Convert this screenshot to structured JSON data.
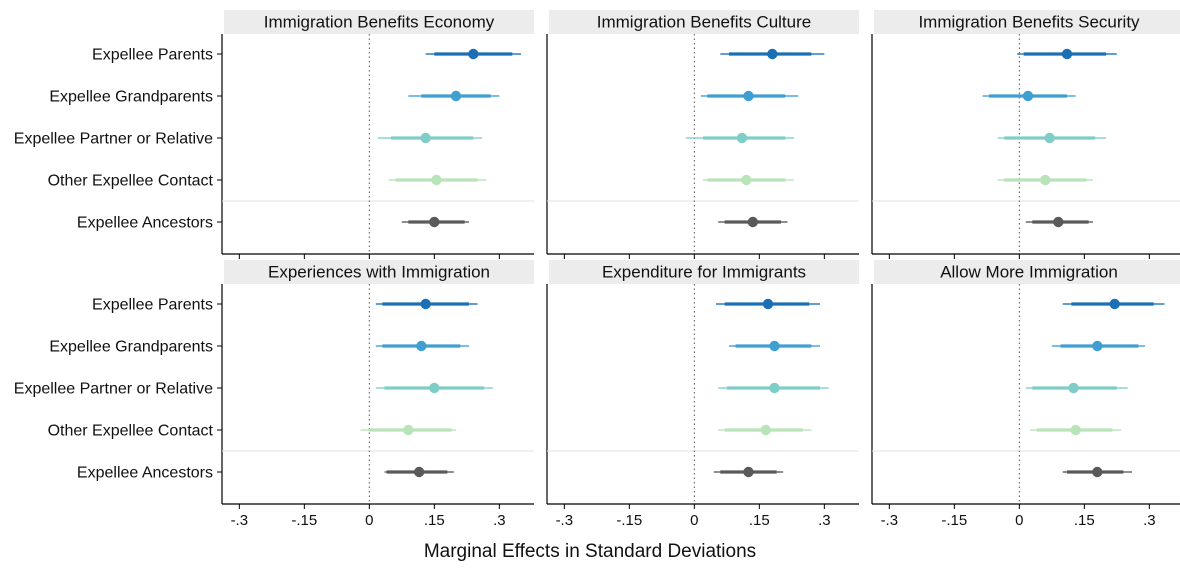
{
  "chart_data": {
    "type": "coefficient-plot",
    "xlabel": "Marginal Effects in Standard Deviations",
    "xlim": [
      -0.34,
      0.38
    ],
    "xticks": [
      -0.3,
      -0.15,
      0,
      0.15,
      0.3
    ],
    "xtick_labels": [
      "-.3",
      "-.15",
      "0",
      ".15",
      ".3"
    ],
    "reference_line": 0,
    "rows": [
      "Expellee Parents",
      "Expellee Grandparents",
      "Expellee Partner or Relative",
      "Other Expellee Contact",
      "Expellee Ancestors"
    ],
    "colors": [
      "#1a6fb5",
      "#3f9fd0",
      "#7fcdc7",
      "#b9e3b9",
      "#5a5a5a"
    ],
    "panels": [
      {
        "title": "Immigration Benefits Economy",
        "estimates": [
          {
            "est": 0.24,
            "ci90": [
              0.15,
              0.33
            ],
            "ci95": [
              0.13,
              0.35
            ]
          },
          {
            "est": 0.2,
            "ci90": [
              0.12,
              0.28
            ],
            "ci95": [
              0.09,
              0.3
            ]
          },
          {
            "est": 0.13,
            "ci90": [
              0.05,
              0.24
            ],
            "ci95": [
              0.02,
              0.26
            ]
          },
          {
            "est": 0.155,
            "ci90": [
              0.06,
              0.25
            ],
            "ci95": [
              0.045,
              0.27
            ]
          },
          {
            "est": 0.15,
            "ci90": [
              0.09,
              0.22
            ],
            "ci95": [
              0.075,
              0.23
            ]
          }
        ]
      },
      {
        "title": "Immigration Benefits Culture",
        "estimates": [
          {
            "est": 0.18,
            "ci90": [
              0.08,
              0.27
            ],
            "ci95": [
              0.06,
              0.3
            ]
          },
          {
            "est": 0.125,
            "ci90": [
              0.03,
              0.21
            ],
            "ci95": [
              0.015,
              0.24
            ]
          },
          {
            "est": 0.11,
            "ci90": [
              0.02,
              0.21
            ],
            "ci95": [
              -0.02,
              0.23
            ]
          },
          {
            "est": 0.12,
            "ci90": [
              0.03,
              0.21
            ],
            "ci95": [
              0.02,
              0.23
            ]
          },
          {
            "est": 0.135,
            "ci90": [
              0.07,
              0.2
            ],
            "ci95": [
              0.055,
              0.215
            ]
          }
        ]
      },
      {
        "title": "Immigration Benefits Security",
        "estimates": [
          {
            "est": 0.11,
            "ci90": [
              0.01,
              0.2
            ],
            "ci95": [
              -0.005,
              0.225
            ]
          },
          {
            "est": 0.02,
            "ci90": [
              -0.07,
              0.11
            ],
            "ci95": [
              -0.085,
              0.13
            ]
          },
          {
            "est": 0.07,
            "ci90": [
              -0.035,
              0.175
            ],
            "ci95": [
              -0.05,
              0.2
            ]
          },
          {
            "est": 0.06,
            "ci90": [
              -0.035,
              0.155
            ],
            "ci95": [
              -0.05,
              0.17
            ]
          },
          {
            "est": 0.09,
            "ci90": [
              0.03,
              0.16
            ],
            "ci95": [
              0.015,
              0.17
            ]
          }
        ]
      },
      {
        "title": "Experiences with Immigration",
        "estimates": [
          {
            "est": 0.13,
            "ci90": [
              0.03,
              0.23
            ],
            "ci95": [
              0.015,
              0.25
            ]
          },
          {
            "est": 0.12,
            "ci90": [
              0.03,
              0.21
            ],
            "ci95": [
              0.015,
              0.23
            ]
          },
          {
            "est": 0.15,
            "ci90": [
              0.035,
              0.265
            ],
            "ci95": [
              0.015,
              0.285
            ]
          },
          {
            "est": 0.09,
            "ci90": [
              0.0,
              0.19
            ],
            "ci95": [
              -0.02,
              0.2
            ]
          },
          {
            "est": 0.115,
            "ci90": [
              0.04,
              0.18
            ],
            "ci95": [
              0.035,
              0.195
            ]
          }
        ]
      },
      {
        "title": "Expenditure for Immigrants",
        "estimates": [
          {
            "est": 0.17,
            "ci90": [
              0.07,
              0.265
            ],
            "ci95": [
              0.05,
              0.29
            ]
          },
          {
            "est": 0.185,
            "ci90": [
              0.095,
              0.27
            ],
            "ci95": [
              0.08,
              0.29
            ]
          },
          {
            "est": 0.185,
            "ci90": [
              0.075,
              0.29
            ],
            "ci95": [
              0.055,
              0.31
            ]
          },
          {
            "est": 0.165,
            "ci90": [
              0.07,
              0.25
            ],
            "ci95": [
              0.055,
              0.27
            ]
          },
          {
            "est": 0.125,
            "ci90": [
              0.06,
              0.19
            ],
            "ci95": [
              0.045,
              0.205
            ]
          }
        ]
      },
      {
        "title": "Allow More Immigration",
        "estimates": [
          {
            "est": 0.22,
            "ci90": [
              0.12,
              0.31
            ],
            "ci95": [
              0.1,
              0.335
            ]
          },
          {
            "est": 0.18,
            "ci90": [
              0.095,
              0.275
            ],
            "ci95": [
              0.075,
              0.29
            ]
          },
          {
            "est": 0.125,
            "ci90": [
              0.03,
              0.225
            ],
            "ci95": [
              0.015,
              0.25
            ]
          },
          {
            "est": 0.13,
            "ci90": [
              0.04,
              0.215
            ],
            "ci95": [
              0.025,
              0.235
            ]
          },
          {
            "est": 0.18,
            "ci90": [
              0.11,
              0.24
            ],
            "ci95": [
              0.1,
              0.26
            ]
          }
        ]
      }
    ]
  }
}
